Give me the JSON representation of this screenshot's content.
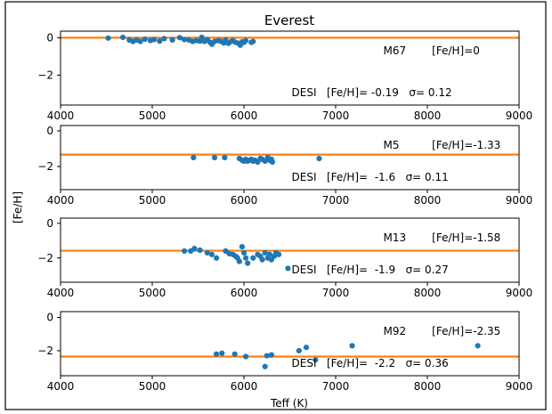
{
  "figure": {
    "title": "Everest",
    "xlabel": "Teff (K)",
    "ylabel": "[Fe/H]"
  },
  "colors": {
    "points": "#1f77b4",
    "line": "#ff7f0e",
    "axes": "#000000"
  },
  "chart_data": [
    {
      "type": "scatter",
      "cluster": "M67",
      "label_left": "M67",
      "label_right": "[Fe/H]=0",
      "reference_feh": 0,
      "stats_text": "DESI   [Fe/H]= -0.19   σ= 0.12",
      "xlim": [
        4000,
        9000
      ],
      "ylim": [
        -3.6,
        0.35
      ],
      "xticks": [
        "4000",
        "5000",
        "6000",
        "7000",
        "8000",
        "9000"
      ],
      "yticks": [
        {
          "v": 0,
          "label": "0"
        },
        {
          "v": -2,
          "label": "−2"
        }
      ],
      "points": [
        [
          4520,
          -0.02
        ],
        [
          4680,
          0.02
        ],
        [
          4750,
          -0.12
        ],
        [
          4790,
          -0.2
        ],
        [
          4830,
          -0.12
        ],
        [
          4870,
          -0.2
        ],
        [
          4920,
          -0.08
        ],
        [
          4980,
          -0.15
        ],
        [
          5020,
          -0.1
        ],
        [
          5080,
          -0.18
        ],
        [
          5130,
          -0.05
        ],
        [
          5220,
          -0.12
        ],
        [
          5300,
          0.0
        ],
        [
          5350,
          -0.1
        ],
        [
          5400,
          -0.12
        ],
        [
          5440,
          -0.2
        ],
        [
          5480,
          -0.15
        ],
        [
          5520,
          -0.18
        ],
        [
          5540,
          0.02
        ],
        [
          5570,
          -0.2
        ],
        [
          5600,
          -0.1
        ],
        [
          5630,
          -0.25
        ],
        [
          5650,
          -0.35
        ],
        [
          5680,
          -0.2
        ],
        [
          5720,
          -0.15
        ],
        [
          5750,
          -0.2
        ],
        [
          5780,
          -0.28
        ],
        [
          5800,
          -0.12
        ],
        [
          5830,
          -0.3
        ],
        [
          5860,
          -0.2
        ],
        [
          5880,
          -0.15
        ],
        [
          5910,
          -0.25
        ],
        [
          5940,
          -0.3
        ],
        [
          5960,
          -0.4
        ],
        [
          5980,
          -0.22
        ],
        [
          6000,
          -0.25
        ],
        [
          6020,
          -0.15
        ],
        [
          6080,
          -0.25
        ],
        [
          6100,
          -0.2
        ]
      ]
    },
    {
      "type": "scatter",
      "cluster": "M5",
      "label_left": "M5",
      "label_right": "[Fe/H]=-1.33",
      "reference_feh": -1.33,
      "stats_text": "DESI   [Fe/H]=  -1.6   σ= 0.11",
      "xlim": [
        4000,
        9000
      ],
      "ylim": [
        -3.3,
        0.3
      ],
      "xticks": [
        "4000",
        "5000",
        "6000",
        "7000",
        "8000",
        "9000"
      ],
      "yticks": [
        {
          "v": 0,
          "label": "0"
        },
        {
          "v": -2,
          "label": "−2"
        }
      ],
      "points": [
        [
          5450,
          -1.5
        ],
        [
          5680,
          -1.5
        ],
        [
          5790,
          -1.5
        ],
        [
          5950,
          -1.55
        ],
        [
          5980,
          -1.65
        ],
        [
          6000,
          -1.7
        ],
        [
          6020,
          -1.6
        ],
        [
          6040,
          -1.7
        ],
        [
          6060,
          -1.65
        ],
        [
          6080,
          -1.6
        ],
        [
          6100,
          -1.7
        ],
        [
          6120,
          -1.65
        ],
        [
          6150,
          -1.75
        ],
        [
          6180,
          -1.55
        ],
        [
          6200,
          -1.6
        ],
        [
          6230,
          -1.7
        ],
        [
          6260,
          -1.5
        ],
        [
          6280,
          -1.65
        ],
        [
          6300,
          -1.6
        ],
        [
          6310,
          -1.75
        ],
        [
          6820,
          -1.55
        ]
      ]
    },
    {
      "type": "scatter",
      "cluster": "M13",
      "label_left": "M13",
      "label_right": "[Fe/H]=-1.58",
      "reference_feh": -1.58,
      "stats_text": "DESI   [Fe/H]=  -1.9   σ= 0.27",
      "xlim": [
        4000,
        9000
      ],
      "ylim": [
        -3.4,
        0.3
      ],
      "xticks": [
        "4000",
        "5000",
        "6000",
        "7000",
        "8000",
        "9000"
      ],
      "yticks": [
        {
          "v": 0,
          "label": "0"
        },
        {
          "v": -2,
          "label": "−2"
        }
      ],
      "points": [
        [
          5350,
          -1.6
        ],
        [
          5420,
          -1.6
        ],
        [
          5460,
          -1.45
        ],
        [
          5520,
          -1.55
        ],
        [
          5600,
          -1.7
        ],
        [
          5650,
          -1.8
        ],
        [
          5700,
          -2.0
        ],
        [
          5800,
          -1.6
        ],
        [
          5840,
          -1.75
        ],
        [
          5880,
          -1.8
        ],
        [
          5910,
          -1.9
        ],
        [
          5930,
          -2.0
        ],
        [
          5950,
          -2.2
        ],
        [
          5980,
          -1.35
        ],
        [
          6000,
          -1.7
        ],
        [
          6020,
          -2.0
        ],
        [
          6040,
          -2.3
        ],
        [
          6100,
          -2.0
        ],
        [
          6150,
          -1.8
        ],
        [
          6180,
          -1.9
        ],
        [
          6200,
          -2.1
        ],
        [
          6230,
          -1.7
        ],
        [
          6260,
          -2.0
        ],
        [
          6280,
          -1.8
        ],
        [
          6300,
          -2.1
        ],
        [
          6330,
          -1.9
        ],
        [
          6350,
          -1.7
        ],
        [
          6380,
          -1.8
        ],
        [
          6480,
          -2.6
        ]
      ]
    },
    {
      "type": "scatter",
      "cluster": "M92",
      "label_left": "M92",
      "label_right": "[Fe/H]=-2.35",
      "reference_feh": -2.35,
      "stats_text": "DESI   [Fe/H]=  -2.2   σ= 0.36",
      "xlim": [
        4000,
        9000
      ],
      "ylim": [
        -3.5,
        0.35
      ],
      "xticks": [
        "4000",
        "5000",
        "6000",
        "7000",
        "8000",
        "9000"
      ],
      "yticks": [
        {
          "v": 0,
          "label": "0"
        },
        {
          "v": -2,
          "label": "−2"
        }
      ],
      "points": [
        [
          5700,
          -2.2
        ],
        [
          5760,
          -2.15
        ],
        [
          5900,
          -2.2
        ],
        [
          6020,
          -2.35
        ],
        [
          6230,
          -2.95
        ],
        [
          6250,
          -2.3
        ],
        [
          6300,
          -2.25
        ],
        [
          6600,
          -2.0
        ],
        [
          6680,
          -1.8
        ],
        [
          6780,
          -2.55
        ],
        [
          7180,
          -1.7
        ],
        [
          8550,
          -1.7
        ]
      ]
    }
  ]
}
